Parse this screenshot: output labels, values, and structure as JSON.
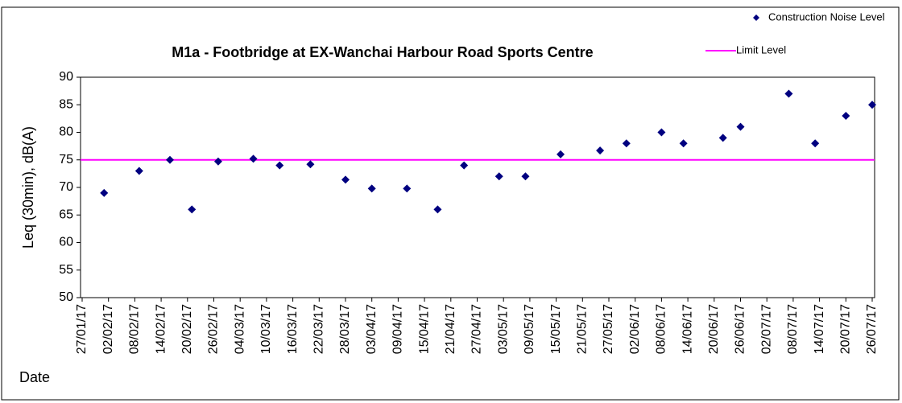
{
  "chart_data": {
    "type": "scatter",
    "title": "M1a - Footbridge at EX-Wanchai Harbour Road Sports Centre",
    "y_label": "Leq (30min), dB(A)",
    "x_label": "Date",
    "series": [
      {
        "name": "Construction Noise Level",
        "color": "#000080",
        "x": [
          "01/02/17",
          "09/02/17",
          "16/02/17",
          "21/02/17",
          "27/02/17",
          "07/03/17",
          "13/03/17",
          "20/03/17",
          "28/03/17",
          "03/04/17",
          "11/04/17",
          "18/04/17",
          "24/04/17",
          "02/05/17",
          "08/05/17",
          "16/05/17",
          "25/05/17",
          "31/05/17",
          "08/06/17",
          "13/06/17",
          "22/06/17",
          "26/06/17",
          "07/07/17",
          "13/07/17",
          "20/07/17",
          "26/07/17"
        ],
        "values": [
          69,
          73,
          75,
          66,
          74.7,
          75.2,
          74,
          74.2,
          71.4,
          69.8,
          69.8,
          66,
          74,
          72,
          72,
          76,
          76.7,
          78,
          80,
          78,
          79,
          81,
          87,
          78,
          83,
          85
        ]
      }
    ],
    "limit": {
      "name": "Limit Level",
      "value": 75,
      "color": "#ff00ff"
    },
    "xlim": [
      "27/01/17",
      "26/07/17"
    ],
    "xticks": [
      "27/01/17",
      "02/02/17",
      "08/02/17",
      "14/02/17",
      "20/02/17",
      "26/02/17",
      "04/03/17",
      "10/03/17",
      "16/03/17",
      "22/03/17",
      "28/03/17",
      "03/04/17",
      "09/04/17",
      "15/04/17",
      "21/04/17",
      "27/04/17",
      "03/05/17",
      "09/05/17",
      "15/05/17",
      "21/05/17",
      "27/05/17",
      "02/06/17",
      "08/06/17",
      "14/06/17",
      "20/06/17",
      "26/06/17",
      "02/07/17",
      "08/07/17",
      "14/07/17",
      "20/07/17",
      "26/07/17"
    ],
    "ylim": [
      50,
      90
    ],
    "yticks": [
      50,
      55,
      60,
      65,
      70,
      75,
      80,
      85,
      90
    ],
    "grid": false,
    "legend": "top-right"
  }
}
